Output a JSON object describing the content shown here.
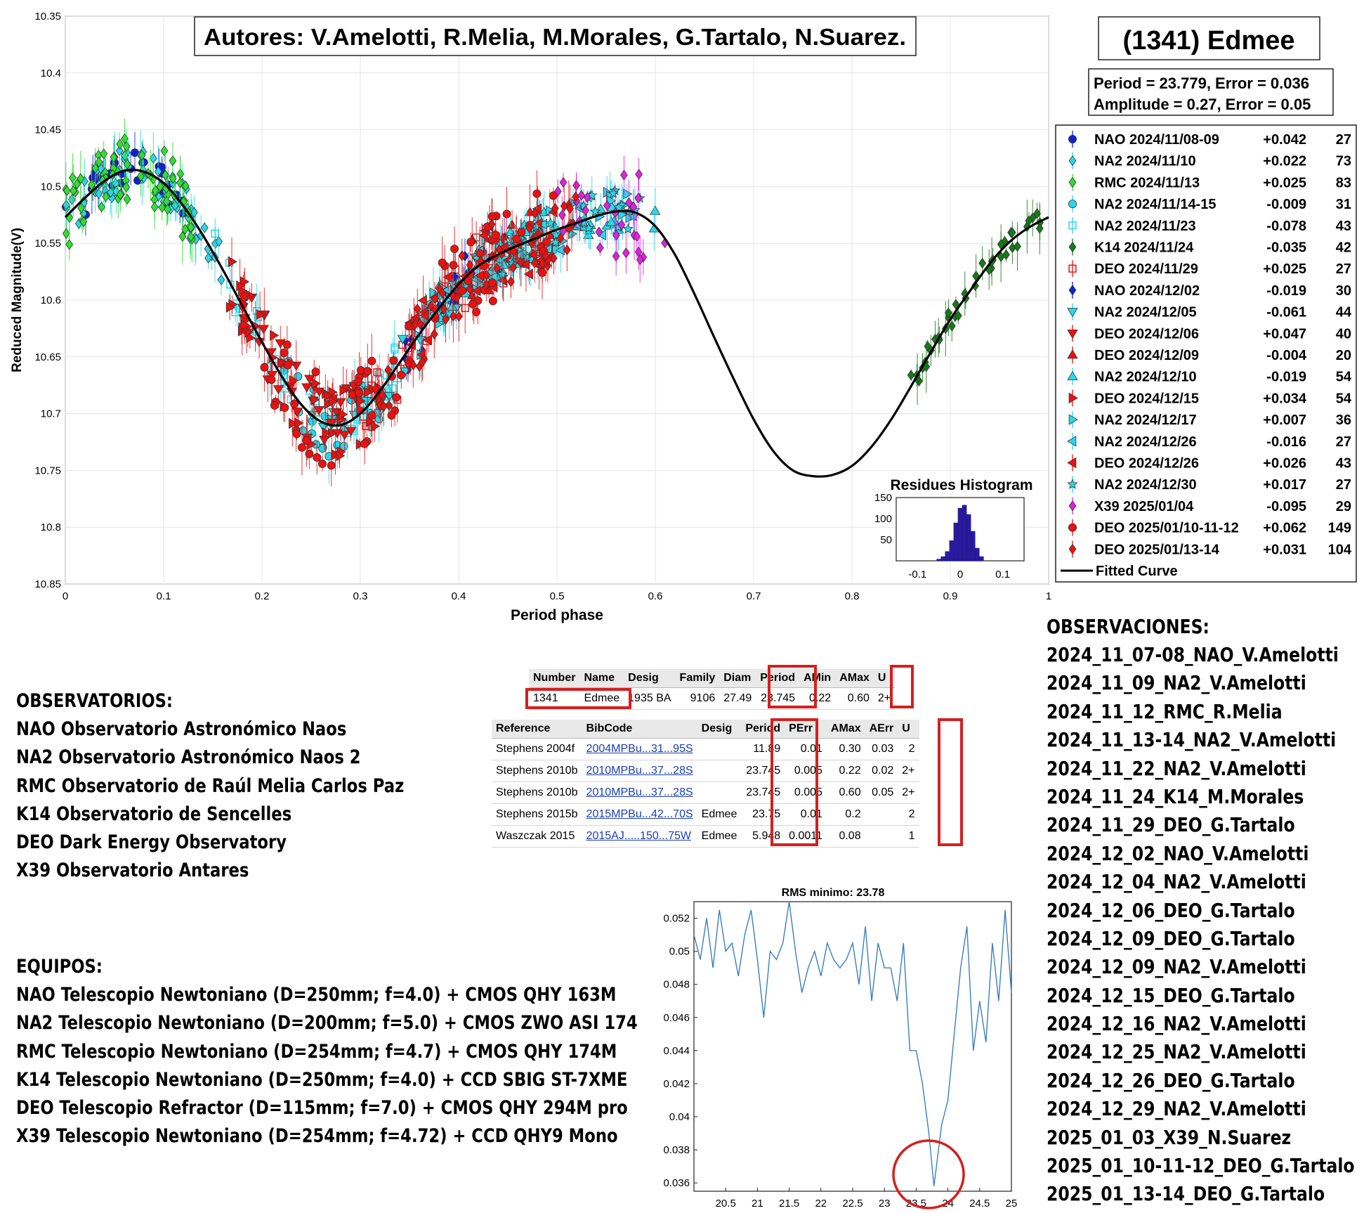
{
  "main_plot": {
    "authors": "Autores: V.Amelotti, R.Melia, M.Morales, G.Tartalo, N.Suarez.",
    "asteroid": "(1341) Edmee",
    "period_line": "Period =  23.779, Error = 0.036",
    "amplitude_line": "Amplitude = 0.27, Error = 0.05",
    "ylabel": "Reduced Magnitude(V)",
    "xlabel": "Period phase",
    "y_ticks": [
      "10.35",
      "10.4",
      "10.45",
      "10.5",
      "10.55",
      "10.6",
      "10.65",
      "10.7",
      "10.75",
      "10.8",
      "10.85"
    ],
    "x_ticks": [
      "0",
      "0.1",
      "0.2",
      "0.3",
      "0.4",
      "0.5",
      "0.6",
      "0.7",
      "0.8",
      "0.9",
      "1"
    ],
    "legend": [
      {
        "label": "NAO 2024/11/08-09",
        "offset": "+0.042",
        "n": "27",
        "color": "#1020d0",
        "marker": "circle"
      },
      {
        "label": "NA2 2024/11/10",
        "offset": "+0.022",
        "n": "73",
        "color": "#28d8ea",
        "marker": "diamond"
      },
      {
        "label": "RMC 2024/11/13",
        "offset": "+0.025",
        "n": "83",
        "color": "#2ee02e",
        "marker": "diamond"
      },
      {
        "label": "NA2 2024/11/14-15",
        "offset": "-0.009",
        "n": "31",
        "color": "#28d8ea",
        "marker": "circle"
      },
      {
        "label": "NA2 2024/11/23",
        "offset": "-0.078",
        "n": "43",
        "color": "#28d8ea",
        "marker": "square"
      },
      {
        "label": "K14 2024/11/24",
        "offset": "-0.035",
        "n": "42",
        "color": "#157a15",
        "marker": "diamond"
      },
      {
        "label": "DEO 2024/11/29",
        "offset": "+0.025",
        "n": "27",
        "color": "#ee1010",
        "marker": "square"
      },
      {
        "label": "NAO 2024/12/02",
        "offset": "-0.019",
        "n": "30",
        "color": "#1020d0",
        "marker": "diamond"
      },
      {
        "label": "NA2 2024/12/05",
        "offset": "-0.061",
        "n": "44",
        "color": "#28d8ea",
        "marker": "tri-down"
      },
      {
        "label": "DEO 2024/12/06",
        "offset": "+0.047",
        "n": "40",
        "color": "#ee1010",
        "marker": "tri-down"
      },
      {
        "label": "DEO 2024/12/09",
        "offset": "-0.004",
        "n": "20",
        "color": "#ee1010",
        "marker": "tri-up"
      },
      {
        "label": "NA2 2024/12/10",
        "offset": "-0.019",
        "n": "54",
        "color": "#28d8ea",
        "marker": "tri-up"
      },
      {
        "label": "DEO 2024/12/15",
        "offset": "+0.034",
        "n": "54",
        "color": "#ee1010",
        "marker": "tri-right"
      },
      {
        "label": "NA2 2024/12/17",
        "offset": "+0.007",
        "n": "36",
        "color": "#28d8ea",
        "marker": "tri-right"
      },
      {
        "label": "NA2 2024/12/26",
        "offset": "-0.016",
        "n": "27",
        "color": "#28d8ea",
        "marker": "tri-left"
      },
      {
        "label": "DEO 2024/12/26",
        "offset": "+0.026",
        "n": "43",
        "color": "#ee1010",
        "marker": "tri-left"
      },
      {
        "label": "NA2 2024/12/30",
        "offset": "+0.017",
        "n": "27",
        "color": "#28d8ea",
        "marker": "star"
      },
      {
        "label": "X39 2025/01/04",
        "offset": "-0.095",
        "n": "29",
        "color": "#e020e0",
        "marker": "diamond"
      },
      {
        "label": "DEO 2025/01/10-11-12",
        "offset": "+0.062",
        "n": "149",
        "color": "#ee1010",
        "marker": "circle"
      },
      {
        "label": "DEO 2025/01/13-14",
        "offset": "+0.031",
        "n": "104",
        "color": "#ee1010",
        "marker": "diamond"
      }
    ],
    "legend_curve": "Fitted Curve",
    "histogram": {
      "title": "Residues Histogram",
      "y_ticks": [
        "150",
        "100",
        "50"
      ],
      "x_ticks": [
        "-0.1",
        "0",
        "0.1"
      ]
    }
  },
  "chart_data": [
    {
      "type": "scatter",
      "title": "",
      "xlabel": "Period phase",
      "ylabel": "Reduced Magnitude(V)",
      "xlim": [
        0,
        1
      ],
      "ylim": [
        10.85,
        10.35
      ],
      "y_inverted": true,
      "grid": true,
      "legend_position": "right",
      "fitted_curve": {
        "name": "Fitted Curve",
        "x": [
          0,
          0.02,
          0.04,
          0.06,
          0.08,
          0.1,
          0.12,
          0.14,
          0.16,
          0.18,
          0.2,
          0.22,
          0.24,
          0.26,
          0.28,
          0.3,
          0.32,
          0.34,
          0.36,
          0.38,
          0.4,
          0.42,
          0.44,
          0.46,
          0.48,
          0.5,
          0.52,
          0.54,
          0.56,
          0.58,
          0.6,
          0.62,
          0.64,
          0.66,
          0.68,
          0.7,
          0.72,
          0.74,
          0.76,
          0.78,
          0.8,
          0.82,
          0.84,
          0.86,
          0.88,
          0.9,
          0.92,
          0.94,
          0.96,
          0.98,
          1
        ],
        "y": [
          10.527,
          10.51,
          10.495,
          10.486,
          10.487,
          10.497,
          10.517,
          10.543,
          10.573,
          10.605,
          10.637,
          10.667,
          10.692,
          10.707,
          10.71,
          10.7,
          10.68,
          10.655,
          10.63,
          10.607,
          10.586,
          10.57,
          10.56,
          10.552,
          10.545,
          10.538,
          10.532,
          10.526,
          10.522,
          10.523,
          10.535,
          10.56,
          10.595,
          10.633,
          10.67,
          10.705,
          10.733,
          10.75,
          10.755,
          10.754,
          10.746,
          10.729,
          10.705,
          10.676,
          10.646,
          10.617,
          10.592,
          10.568,
          10.549,
          10.536,
          10.527
        ]
      },
      "series": [
        {
          "name": "RMC 2024/11/13",
          "x": [
            0.0,
            0.01,
            0.02,
            0.03,
            0.04,
            0.05,
            0.06,
            0.07,
            0.08,
            0.09,
            0.1,
            0.11,
            0.12,
            0.13
          ],
          "y": [
            10.52,
            10.5,
            10.48,
            10.46,
            10.43,
            10.42,
            10.44,
            10.45,
            10.46,
            10.47,
            10.49,
            10.51,
            10.53,
            10.54
          ]
        },
        {
          "name": "K14 2024/11/24",
          "x": [
            0.86,
            0.87,
            0.88,
            0.89,
            0.9,
            0.91,
            0.92,
            0.93,
            0.94,
            0.95,
            0.96,
            0.97,
            0.98,
            0.99
          ],
          "y": [
            10.7,
            10.69,
            10.66,
            10.64,
            10.62,
            10.6,
            10.6,
            10.58,
            10.57,
            10.56,
            10.55,
            10.54,
            10.53,
            10.53
          ]
        },
        {
          "name": "X39 2025/01/04",
          "x": [
            0.5,
            0.54,
            0.56,
            0.57,
            0.58,
            0.59,
            0.6,
            0.61,
            0.55,
            0.99
          ],
          "y": [
            10.5,
            10.53,
            10.62,
            10.61,
            10.52,
            10.57,
            10.46,
            10.48,
            10.58,
            10.53
          ]
        },
        {
          "name": "DEO 2025/01/10-11-12",
          "x": [
            0.2,
            0.22,
            0.24,
            0.26,
            0.28,
            0.3,
            0.32,
            0.34,
            0.36,
            0.38,
            0.4,
            0.41,
            0.42,
            0.43,
            0.44,
            0.45,
            0.46,
            0.47,
            0.48
          ],
          "y": [
            10.63,
            10.68,
            10.72,
            10.74,
            10.73,
            10.72,
            10.7,
            10.68,
            10.62,
            10.6,
            10.55,
            10.58,
            10.62,
            10.5,
            10.55,
            10.6,
            10.52,
            10.56,
            10.54
          ]
        }
      ]
    },
    {
      "type": "bar",
      "title": "Residues Histogram",
      "xlim": [
        -0.15,
        0.15
      ],
      "ylim": [
        0,
        150
      ],
      "categories": [
        "-0.05",
        "-0.04",
        "-0.03",
        "-0.02",
        "-0.01",
        "0",
        "0.01",
        "0.02",
        "0.03",
        "0.04",
        "0.05"
      ],
      "values": [
        4,
        10,
        22,
        48,
        90,
        125,
        132,
        110,
        70,
        30,
        10
      ]
    },
    {
      "type": "line",
      "title": "RMS minimo: 23.78",
      "xlabel": "",
      "ylabel": "",
      "xlim": [
        20,
        25
      ],
      "ylim": [
        0.0355,
        0.053
      ],
      "x_ticks": [
        "20.5",
        "21",
        "21.5",
        "22",
        "22.5",
        "23",
        "23.5",
        "24",
        "24.5",
        "25"
      ],
      "y_ticks": [
        "0.052",
        "0.05",
        "0.048",
        "0.046",
        "0.044",
        "0.042",
        "0.04",
        "0.038",
        "0.036"
      ],
      "series": [
        {
          "name": "",
          "x": [
            20.0,
            20.1,
            20.2,
            20.3,
            20.4,
            20.5,
            20.6,
            20.7,
            20.8,
            20.9,
            21.0,
            21.1,
            21.2,
            21.3,
            21.4,
            21.5,
            21.6,
            21.7,
            21.8,
            21.9,
            22.0,
            22.1,
            22.2,
            22.3,
            22.4,
            22.5,
            22.6,
            22.7,
            22.8,
            22.9,
            23.0,
            23.1,
            23.2,
            23.3,
            23.4,
            23.5,
            23.6,
            23.7,
            23.78,
            23.9,
            24.0,
            24.1,
            24.2,
            24.3,
            24.4,
            24.5,
            24.6,
            24.7,
            24.8,
            24.9,
            25.0
          ],
          "y": [
            0.051,
            0.0495,
            0.052,
            0.049,
            0.0525,
            0.05,
            0.0505,
            0.0485,
            0.051,
            0.0525,
            0.0495,
            0.046,
            0.05,
            0.0495,
            0.0505,
            0.053,
            0.05,
            0.0475,
            0.049,
            0.05,
            0.0485,
            0.0505,
            0.0495,
            0.049,
            0.0495,
            0.0505,
            0.048,
            0.0515,
            0.047,
            0.0505,
            0.049,
            0.049,
            0.047,
            0.0505,
            0.044,
            0.044,
            0.042,
            0.039,
            0.0358,
            0.0395,
            0.041,
            0.045,
            0.049,
            0.0515,
            0.044,
            0.047,
            0.0445,
            0.0505,
            0.047,
            0.0525,
            0.0475
          ]
        }
      ]
    }
  ],
  "db_table_1": {
    "headers": [
      "Number",
      "Name",
      "Desig",
      "Family",
      "Diam",
      "Period",
      "AMin",
      "AMax",
      "U"
    ],
    "row": [
      "1341",
      "Edmee",
      "1935 BA",
      "9106",
      "27.49",
      "23.745",
      "0.22",
      "0.60",
      "2+"
    ]
  },
  "db_table_2": {
    "headers": [
      "Reference",
      "BibCode",
      "Desig",
      "Period",
      "PErr",
      "AMax",
      "AErr",
      "U"
    ],
    "rows": [
      [
        "Stephens 2004f",
        "2004MPBu...31...95S",
        "",
        "11.89",
        "0.01",
        "0.30",
        "0.03",
        "2"
      ],
      [
        "Stephens 2010b",
        "2010MPBu...37...28S",
        "",
        "23.745",
        "0.005",
        "0.22",
        "0.02",
        "2+"
      ],
      [
        "Stephens 2010b",
        "2010MPBu...37...28S",
        "",
        "23.745",
        "0.005",
        "0.60",
        "0.05",
        "2+"
      ],
      [
        "Stephens 2015b",
        "2015MPBu...42...70S",
        "Edmee",
        "23.75",
        "0.01",
        "0.2",
        "",
        "2"
      ],
      [
        "Waszczak 2015",
        "2015AJ.....150...75W",
        "Edmee",
        "5.948",
        "0.0011",
        "0.08",
        "",
        "1"
      ]
    ]
  },
  "observatorios": {
    "title": "OBSERVATORIOS:",
    "lines": [
      "NAO Observatorio Astronómico Naos",
      "NA2 Observatorio Astronómico Naos 2",
      "RMC Observatorio de Raúl Melia Carlos Paz",
      "K14 Observatorio de Sencelles",
      "DEO Dark Energy Observatory",
      "X39 Observatorio Antares"
    ]
  },
  "equipos": {
    "title": "EQUIPOS:",
    "lines": [
      "NAO Telescopio Newtoniano (D=250mm; f=4.0) + CMOS QHY 163M",
      "NA2 Telescopio Newtoniano (D=200mm; f=5.0) + CMOS ZWO ASI 174",
      "RMC Telescopio Newtoniano (D=254mm; f=4.7) + CMOS QHY 174M",
      "K14 Telescopio Newtoniano (D=250mm; f=4.0) + CCD SBIG ST-7XME",
      "DEO Telescopio Refractor (D=115mm; f=7.0) + CMOS QHY 294M pro",
      "X39 Telescopio Newtoniano (D=254mm; f=4.72) + CCD QHY9 Mono"
    ]
  },
  "observaciones": {
    "title": "OBSERVACIONES:",
    "lines": [
      "2024_11_07-08_NAO_V.Amelotti",
      "2024_11_09_NA2_V.Amelotti",
      "2024_11_12_RMC_R.Melia",
      "2024_11_13-14_NA2_V.Amelotti",
      "2024_11_22_NA2_V.Amelotti",
      "2024_11_24_K14_M.Morales",
      "2024_11_29_DEO_G.Tartalo",
      "2024_12_02_NAO_V.Amelotti",
      "2024_12_04_NA2_V.Amelotti",
      "2024_12_06_DEO_G.Tartalo",
      "2024_12_09_DEO_G.Tartalo",
      "2024_12_09_NA2_V.Amelotti",
      "2024_12_15_DEO_G.Tartalo",
      "2024_12_16_NA2_V.Amelotti",
      "2024_12_25_NA2_V.Amelotti",
      "2024_12_26_DEO_G.Tartalo",
      "2024_12_29_NA2_V.Amelotti",
      "2025_01_03_X39_N.Suarez",
      "2025_01_10-11-12_DEO_G.Tartalo",
      "2025_01_13-14_DEO_G.Tartalo"
    ]
  },
  "rms_plot": {
    "title": "RMS minimo: 23.78"
  },
  "colors": {
    "highlight_red": "#d42020",
    "fit_curve": "#000000",
    "rms_line": "#3a7fbf",
    "hist_bar": "#2a1aa0"
  }
}
